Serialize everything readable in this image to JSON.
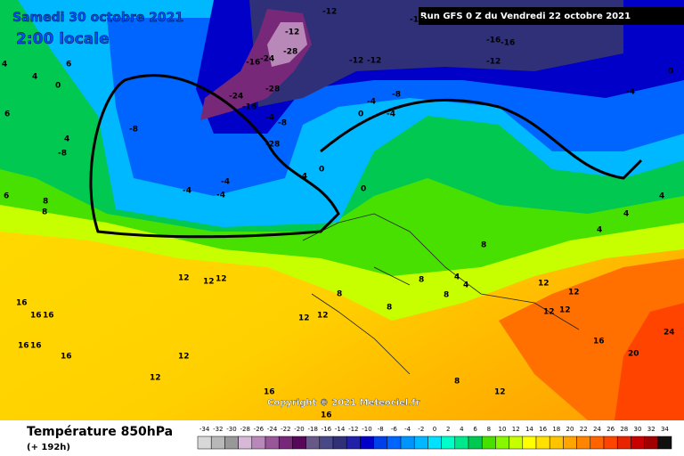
{
  "header": {
    "date": "Samedi 30 octobre 2021",
    "time": "2:00 locale",
    "run": "Run GFS 0 Z du Vendredi 22 octobre 2021"
  },
  "map": {
    "copyright": "Copyright © 2021 Meteociel.fr",
    "labels": [
      -12,
      -16,
      -12,
      -16,
      -16,
      -12,
      -12,
      -12,
      -16,
      -24,
      -28,
      -28,
      -24,
      -16,
      -4,
      -8,
      -28,
      -8,
      -4,
      -4,
      0,
      -8,
      -8,
      0,
      -4,
      -4,
      -4,
      -4,
      0,
      -4,
      4,
      4,
      4,
      8,
      12,
      12,
      12,
      4,
      8,
      4,
      12,
      12,
      8,
      12,
      12,
      8,
      8,
      12,
      12,
      16,
      20,
      24,
      16,
      16,
      16,
      16,
      16,
      16,
      12,
      12,
      16,
      16,
      12,
      8,
      8,
      8,
      6,
      4,
      0,
      4,
      4,
      6,
      6,
      0
    ]
  },
  "footer": {
    "title": "Température 850hPa",
    "lead": "(+ 192h)"
  },
  "scale": {
    "values": [
      -34,
      -32,
      -30,
      -28,
      -26,
      -24,
      -22,
      -20,
      -18,
      -16,
      -14,
      -12,
      -10,
      -8,
      -6,
      -4,
      -2,
      0,
      2,
      4,
      6,
      8,
      10,
      12,
      14,
      16,
      18,
      20,
      22,
      24,
      26,
      28,
      30,
      32,
      34
    ],
    "colors": [
      "#d8d8d8",
      "#b8b8b8",
      "#989898",
      "#d8b8d8",
      "#b888b8",
      "#985898",
      "#782878",
      "#580858",
      "#685888",
      "#484888",
      "#303078",
      "#2020a8",
      "#0000c8",
      "#0040e8",
      "#0064ff",
      "#0094ff",
      "#00b8ff",
      "#00e0ff",
      "#00ffc8",
      "#00e88c",
      "#00c850",
      "#48e000",
      "#88f800",
      "#c8ff00",
      "#ffff00",
      "#ffe000",
      "#ffc400",
      "#ffa400",
      "#ff8400",
      "#ff6400",
      "#ff4400",
      "#e82400",
      "#c80000",
      "#a00000",
      "#101010"
    ]
  }
}
